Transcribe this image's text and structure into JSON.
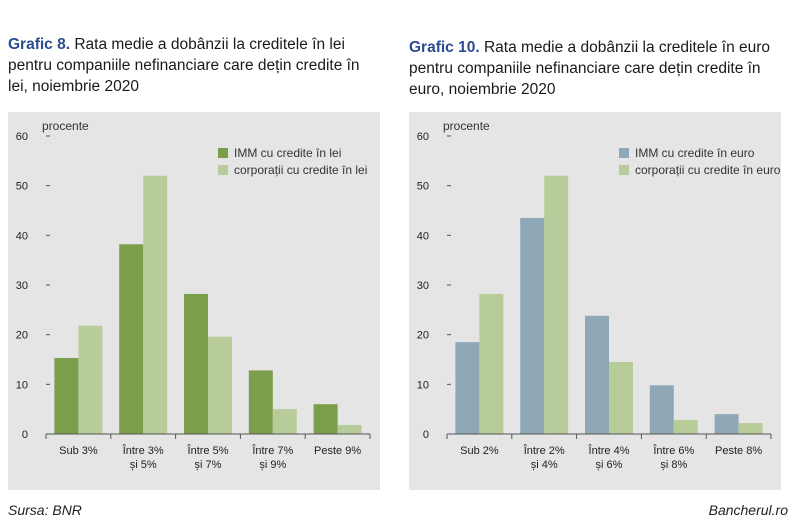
{
  "charts": [
    {
      "id": "left",
      "title_label": "Grafic 8.",
      "title_text": " Rata medie a dobânzii la creditele în lei pentru companiile nefinanciare care dețin credite în lei, noiembrie 2020"
    },
    {
      "id": "right",
      "title_label": "Grafic 10.",
      "title_text": " Rata medie a dobânzii la creditele în euro pentru companiile nefinanciare care dețin credite în euro, noiembrie 2020"
    }
  ],
  "chart_data": [
    {
      "type": "bar",
      "title": "Grafic 8. Rata medie a dobânzii la creditele în lei pentru companiile nefinanciare care dețin credite în lei, noiembrie 2020",
      "ylabel": "procente",
      "ylim": [
        0,
        60
      ],
      "yticks": [
        0,
        10,
        20,
        30,
        40,
        50,
        60
      ],
      "categories": [
        [
          "Sub 3%"
        ],
        [
          "Între 3%",
          "și 5%"
        ],
        [
          "Între 5%",
          "și 7%"
        ],
        [
          "Între 7%",
          "și 9%"
        ],
        [
          "Peste 9%"
        ]
      ],
      "series": [
        {
          "name": "IMM cu credite în lei",
          "color": "#7a9e4a",
          "values": [
            15.3,
            38.2,
            28.2,
            12.8,
            6.0
          ]
        },
        {
          "name": "corporații cu credite în lei",
          "color": "#b8cc9a",
          "values": [
            21.8,
            52.0,
            19.6,
            5.0,
            1.8
          ]
        }
      ],
      "legend": "top-right",
      "grid": true
    },
    {
      "type": "bar",
      "title": "Grafic 10. Rata medie a dobânzii la creditele în euro pentru companiile nefinanciare care dețin credite în euro, noiembrie 2020",
      "ylabel": "procente",
      "ylim": [
        0,
        60
      ],
      "yticks": [
        0,
        10,
        20,
        30,
        40,
        50,
        60
      ],
      "categories": [
        [
          "Sub 2%"
        ],
        [
          "Între 2%",
          "și 4%"
        ],
        [
          "Între 4%",
          "și 6%"
        ],
        [
          "Între 6%",
          "și 8%"
        ],
        [
          "Peste 8%"
        ]
      ],
      "series": [
        {
          "name": "IMM cu credite în euro",
          "color": "#8fa8b8",
          "values": [
            18.5,
            43.5,
            23.8,
            9.8,
            4.0
          ]
        },
        {
          "name": "corporații cu credite în euro",
          "color": "#b8cc9a",
          "values": [
            28.2,
            52.0,
            14.5,
            2.8,
            2.2
          ]
        }
      ],
      "legend": "top-right",
      "grid": true
    }
  ],
  "footer": {
    "source": "Sursa: BNR",
    "credit": "Bancherul.ro"
  }
}
